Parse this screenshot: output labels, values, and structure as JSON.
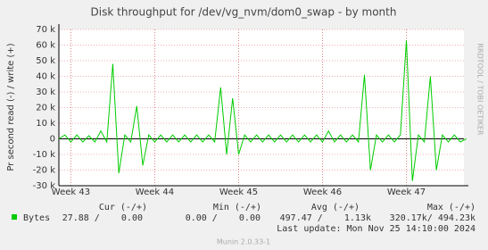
{
  "chart_data": {
    "type": "line",
    "title": "Disk throughput for /dev/vg_nvm/dom0_swap - by month",
    "ylabel": "Pr second read (-) / write (+)",
    "x": [
      0,
      0.5,
      1,
      1.5,
      2,
      2.5,
      3,
      3.5,
      4,
      4.5,
      5,
      5.5,
      6,
      6.5,
      7,
      7.5,
      8,
      8.5,
      9,
      9.5,
      10,
      10.5,
      11,
      11.5,
      12,
      12.5,
      13,
      13.5,
      14,
      14.5,
      15,
      15.5,
      16,
      16.5,
      17,
      17.5,
      18,
      18.5,
      19,
      19.5,
      20,
      20.5,
      21,
      21.5,
      22,
      22.5,
      23,
      23.5,
      24,
      24.5,
      25,
      25.5,
      26,
      26.5,
      27,
      27.5,
      28,
      28.5,
      29,
      29.5,
      30,
      30.5,
      31,
      31.5,
      32,
      32.5,
      33,
      33.5,
      34
    ],
    "series": [
      {
        "name": "Bytes",
        "color": "#00cc00",
        "values": [
          0,
          2500,
          -2000,
          2500,
          -2000,
          2000,
          -2000,
          5000,
          -2000,
          48000,
          -22000,
          2500,
          -2000,
          21000,
          -17000,
          2500,
          -2000,
          2500,
          -2000,
          2500,
          -2000,
          2500,
          -2000,
          2500,
          -2000,
          2500,
          -2000,
          33000,
          -10000,
          26000,
          -10000,
          2500,
          -2000,
          2500,
          -2000,
          2500,
          -2000,
          2500,
          -2000,
          2500,
          -2000,
          2500,
          -2000,
          2500,
          -2000,
          5000,
          -2000,
          2500,
          -2000,
          2500,
          -2000,
          41000,
          -20000,
          2500,
          -2000,
          2500,
          -2000,
          2500,
          63000,
          -27000,
          2500,
          -2000,
          40000,
          -20000,
          2500,
          -2000,
          2500,
          -2000,
          0
        ]
      }
    ],
    "xlim": [
      0,
      33.8
    ],
    "xticks": [
      {
        "value": 1,
        "label": "Week 43"
      },
      {
        "value": 8,
        "label": "Week 44"
      },
      {
        "value": 15,
        "label": "Week 45"
      },
      {
        "value": 22,
        "label": "Week 46"
      },
      {
        "value": 29,
        "label": "Week 47"
      }
    ],
    "ylim": [
      -30000,
      70000
    ],
    "yticks": [
      {
        "value": -30000,
        "label": "-30 k"
      },
      {
        "value": -20000,
        "label": "-20 k"
      },
      {
        "value": -10000,
        "label": "-10 k"
      },
      {
        "value": 0,
        "label": "0"
      },
      {
        "value": 10000,
        "label": "10 k"
      },
      {
        "value": 20000,
        "label": "20 k"
      },
      {
        "value": 30000,
        "label": "30 k"
      },
      {
        "value": 40000,
        "label": "40 k"
      },
      {
        "value": 50000,
        "label": "50 k"
      },
      {
        "value": 60000,
        "label": "60 k"
      },
      {
        "value": 70000,
        "label": "70 k"
      }
    ],
    "grid": true
  },
  "legend_table": {
    "headers": [
      "Cur (-/+)",
      "Min (-/+)",
      "Avg (-/+)",
      "Max (-/+)"
    ],
    "cells": [
      "27.88 /    0.00",
      "0.00 /    0.00",
      "497.47 /    1.13k",
      "320.17k/ 494.23k"
    ]
  },
  "last_update": "Last update: Mon Nov 25 14:10:00 2024",
  "footer": "Munin 2.0.33-1",
  "watermark": "RRDTOOL / TOBI OETIKER"
}
